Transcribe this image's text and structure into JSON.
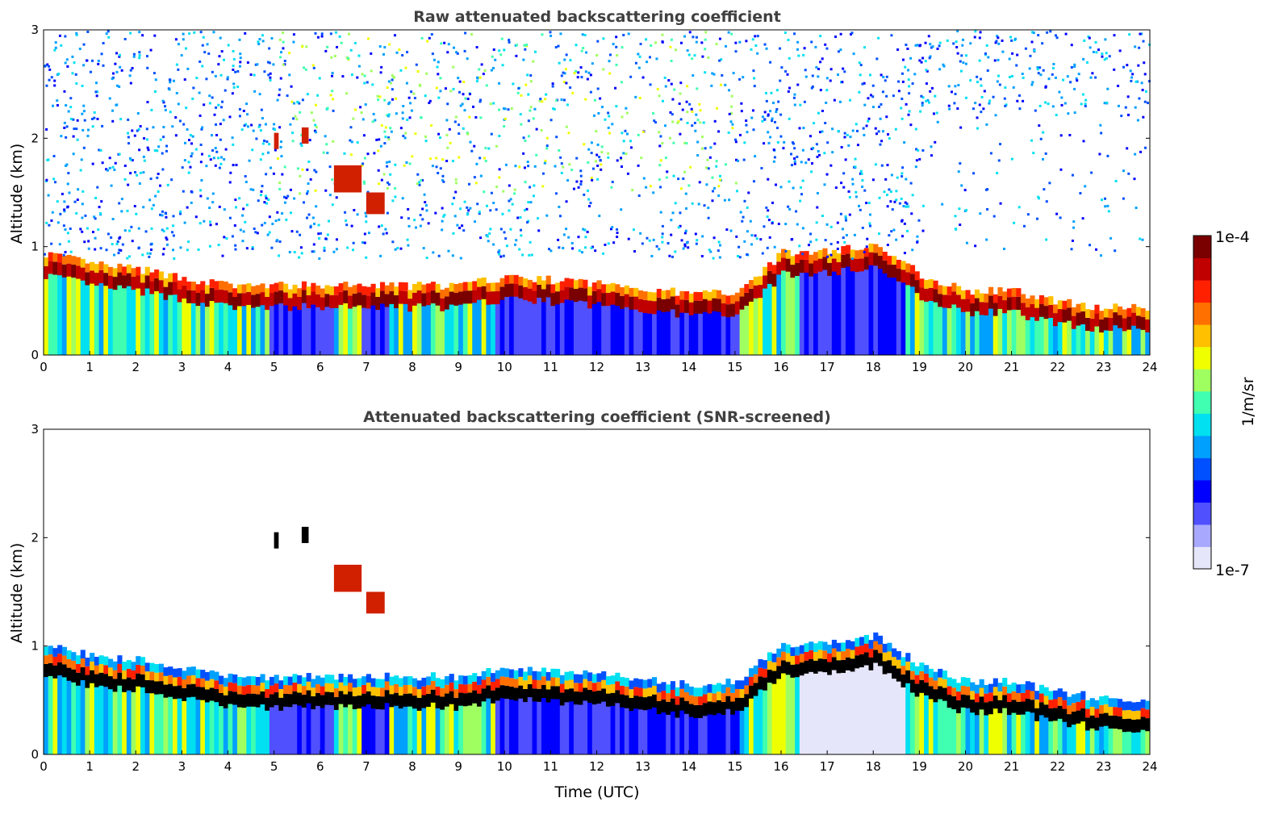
{
  "chart_data": [
    {
      "type": "heatmap",
      "title": "Raw attenuated backscattering coefficient",
      "xlabel": "",
      "ylabel": "Altitude (km)",
      "xlim": [
        0,
        24
      ],
      "ylim": [
        0,
        3
      ],
      "xticks": [
        "0",
        "1",
        "2",
        "3",
        "4",
        "5",
        "6",
        "7",
        "8",
        "9",
        "10",
        "11",
        "12",
        "13",
        "14",
        "15",
        "16",
        "17",
        "18",
        "19",
        "20",
        "21",
        "22",
        "23",
        "24"
      ],
      "yticks": [
        "0",
        "1",
        "2",
        "3"
      ],
      "screened": false
    },
    {
      "type": "heatmap",
      "title": "Attenuated backscattering coefficient (SNR-screened)",
      "xlabel": "Time (UTC)",
      "ylabel": "Altitude (km)",
      "xlim": [
        0,
        24
      ],
      "ylim": [
        0,
        3
      ],
      "xticks": [
        "0",
        "1",
        "2",
        "3",
        "4",
        "5",
        "6",
        "7",
        "8",
        "9",
        "10",
        "11",
        "12",
        "13",
        "14",
        "15",
        "16",
        "17",
        "18",
        "19",
        "20",
        "21",
        "22",
        "23",
        "24"
      ],
      "yticks": [
        "0",
        "1",
        "2",
        "3"
      ],
      "screened": true
    }
  ],
  "layer_top_km": {
    "hours": [
      0,
      1,
      2,
      3,
      4,
      5,
      6,
      7,
      8,
      9,
      10,
      11,
      12,
      13,
      14,
      15,
      16,
      17,
      18,
      19,
      20,
      21,
      22,
      23,
      24
    ],
    "altitude": [
      0.8,
      0.7,
      0.65,
      0.57,
      0.5,
      0.5,
      0.5,
      0.5,
      0.5,
      0.5,
      0.58,
      0.55,
      0.52,
      0.48,
      0.42,
      0.45,
      0.8,
      0.82,
      0.88,
      0.6,
      0.45,
      0.45,
      0.35,
      0.3,
      0.3
    ]
  },
  "colorbar": {
    "label": "1/m/sr",
    "max_label": "1e-4",
    "min_label": "1e-7",
    "colors": [
      "#e6e6fa",
      "#a8a8ff",
      "#5050ff",
      "#0000ff",
      "#0050ff",
      "#00a0ff",
      "#00e0f0",
      "#40ffb0",
      "#a0ff60",
      "#f0ff00",
      "#ffc000",
      "#ff7000",
      "#ff2000",
      "#c00000",
      "#7a0000"
    ]
  }
}
